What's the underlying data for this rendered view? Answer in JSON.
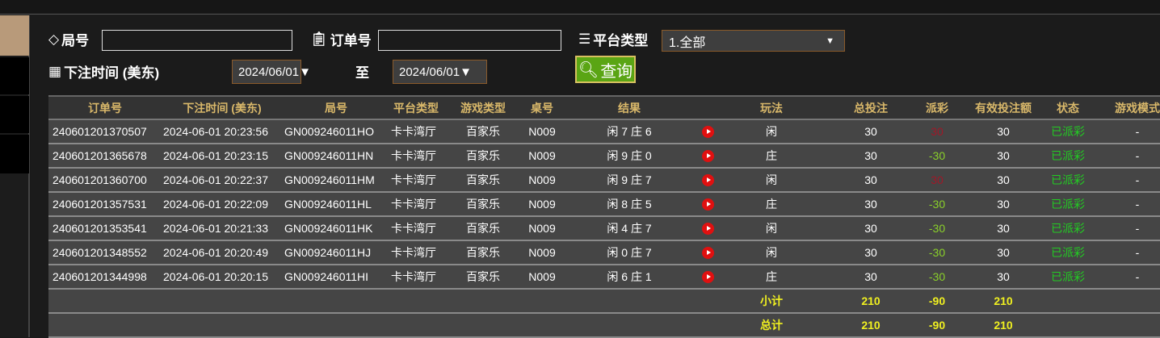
{
  "filters": {
    "round_label": "局号",
    "round_value": "",
    "order_label": "订单号",
    "order_value": "",
    "platform_label": "平台类型",
    "platform_selected": "1.全部",
    "time_label": "下注时间 (美东)",
    "date_from": "2024/06/01▼",
    "to_label": "至",
    "date_to": "2024/06/01▼",
    "query_button": "查询"
  },
  "table": {
    "headers": [
      "订单号",
      "下注时间 (美东)",
      "局号",
      "平台类型",
      "游戏类型",
      "桌号",
      "结果",
      "",
      "玩法",
      "总投注",
      "派彩",
      "有效投注额",
      "状态",
      "游戏模式"
    ],
    "rows": [
      {
        "order": "240601201370507",
        "time": "2024-06-01 20:23:56",
        "round": "GN009246011HO",
        "platform": "卡卡湾厅",
        "game": "百家乐",
        "table": "N009",
        "result": "闲 7 庄 6",
        "play": "闲",
        "bet": "30",
        "payout": "30",
        "valid": "30",
        "status": "已派彩",
        "mode": "-"
      },
      {
        "order": "240601201365678",
        "time": "2024-06-01 20:23:15",
        "round": "GN009246011HN",
        "platform": "卡卡湾厅",
        "game": "百家乐",
        "table": "N009",
        "result": "闲 9 庄 0",
        "play": "庄",
        "bet": "30",
        "payout": "-30",
        "valid": "30",
        "status": "已派彩",
        "mode": "-"
      },
      {
        "order": "240601201360700",
        "time": "2024-06-01 20:22:37",
        "round": "GN009246011HM",
        "platform": "卡卡湾厅",
        "game": "百家乐",
        "table": "N009",
        "result": "闲 9 庄 7",
        "play": "闲",
        "bet": "30",
        "payout": "30",
        "valid": "30",
        "status": "已派彩",
        "mode": "-"
      },
      {
        "order": "240601201357531",
        "time": "2024-06-01 20:22:09",
        "round": "GN009246011HL",
        "platform": "卡卡湾厅",
        "game": "百家乐",
        "table": "N009",
        "result": "闲 8 庄 5",
        "play": "庄",
        "bet": "30",
        "payout": "-30",
        "valid": "30",
        "status": "已派彩",
        "mode": "-"
      },
      {
        "order": "240601201353541",
        "time": "2024-06-01 20:21:33",
        "round": "GN009246011HK",
        "platform": "卡卡湾厅",
        "game": "百家乐",
        "table": "N009",
        "result": "闲 4 庄 7",
        "play": "闲",
        "bet": "30",
        "payout": "-30",
        "valid": "30",
        "status": "已派彩",
        "mode": "-"
      },
      {
        "order": "240601201348552",
        "time": "2024-06-01 20:20:49",
        "round": "GN009246011HJ",
        "platform": "卡卡湾厅",
        "game": "百家乐",
        "table": "N009",
        "result": "闲 0 庄 7",
        "play": "闲",
        "bet": "30",
        "payout": "-30",
        "valid": "30",
        "status": "已派彩",
        "mode": "-"
      },
      {
        "order": "240601201344998",
        "time": "2024-06-01 20:20:15",
        "round": "GN009246011HI",
        "platform": "卡卡湾厅",
        "game": "百家乐",
        "table": "N009",
        "result": "闲 6 庄 1",
        "play": "庄",
        "bet": "30",
        "payout": "-30",
        "valid": "30",
        "status": "已派彩",
        "mode": "-"
      }
    ],
    "subtotal": {
      "label": "小计",
      "bet": "210",
      "payout": "-90",
      "valid": "210"
    },
    "total": {
      "label": "总计",
      "bet": "210",
      "payout": "-90",
      "valid": "210"
    }
  },
  "colors": {
    "header_text": "#d9b86a",
    "negative": "#8ad02a",
    "positive": "#a01828",
    "status": "#22cc22",
    "summary": "#f0f020",
    "query_button": "#5aa514"
  }
}
